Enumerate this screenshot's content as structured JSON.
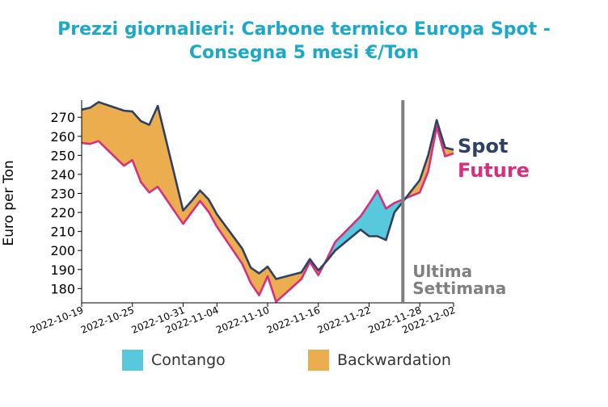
{
  "title": [
    "Prezzi giornalieri: Carbone termico Europa Spot -",
    "Consegna 5 mesi €/Ton"
  ],
  "colors": {
    "spot": "#2e4164",
    "future": "#d62f7b",
    "contango": "#58c8dd",
    "backwardation": "#ebad4e",
    "marker": "#808080",
    "title": "#1aa9c8"
  },
  "legend": [
    {
      "key": "contango",
      "label": "Contango"
    },
    {
      "key": "backwardation",
      "label": "Backwardation"
    }
  ],
  "chart_data": {
    "type": "area",
    "xlabel": "",
    "ylabel": "Euro per Ton",
    "x_ticks": [
      "2022-10-19",
      "2022-10-25",
      "2022-10-31",
      "2022-11-04",
      "2022-11-10",
      "2022-11-16",
      "2022-11-22",
      "2022-11-28",
      "2022-12-02"
    ],
    "y_ticks": [
      180,
      190,
      200,
      210,
      220,
      230,
      240,
      250,
      260,
      270
    ],
    "ylim": [
      172.5,
      279
    ],
    "grid": false,
    "x": [
      "2022-10-19",
      "2022-10-20",
      "2022-10-21",
      "2022-10-24",
      "2022-10-25",
      "2022-10-26",
      "2022-10-27",
      "2022-10-28",
      "2022-10-31",
      "2022-11-01",
      "2022-11-02",
      "2022-11-03",
      "2022-11-04",
      "2022-11-07",
      "2022-11-08",
      "2022-11-09",
      "2022-11-10",
      "2022-11-11",
      "2022-11-14",
      "2022-11-15",
      "2022-11-16",
      "2022-11-17",
      "2022-11-18",
      "2022-11-21",
      "2022-11-22",
      "2022-11-23",
      "2022-11-24",
      "2022-11-25",
      "2022-11-28",
      "2022-11-29",
      "2022-11-30",
      "2022-12-01",
      "2022-12-02"
    ],
    "series": [
      {
        "name": "Spot",
        "values": [
          274,
          275,
          278,
          273.5,
          273,
          268,
          266,
          276,
          221,
          226,
          231.5,
          227,
          219,
          201,
          191,
          188,
          191.5,
          185,
          188.5,
          195.5,
          189.5,
          194.5,
          200,
          211,
          207.5,
          207.5,
          205.5,
          220,
          237,
          250,
          268.5,
          254,
          253
        ]
      },
      {
        "name": "Future",
        "values": [
          256.5,
          256,
          257.5,
          244.5,
          247.5,
          236,
          230.5,
          233.5,
          214,
          220,
          226,
          220.5,
          212.5,
          193,
          183,
          176.5,
          186.5,
          173,
          185,
          194,
          187,
          195.5,
          204.5,
          218,
          224.5,
          231.5,
          222,
          225,
          230.5,
          241.5,
          265,
          249.5,
          251
        ]
      }
    ],
    "annotations": [
      {
        "text": "Ultima Settimana",
        "lines": [
          "Ultima",
          "Settimana"
        ],
        "x": "2022-11-26"
      }
    ],
    "series_labels": [
      {
        "series": "Spot",
        "text": "Spot"
      },
      {
        "series": "Future",
        "text": "Future"
      }
    ]
  }
}
